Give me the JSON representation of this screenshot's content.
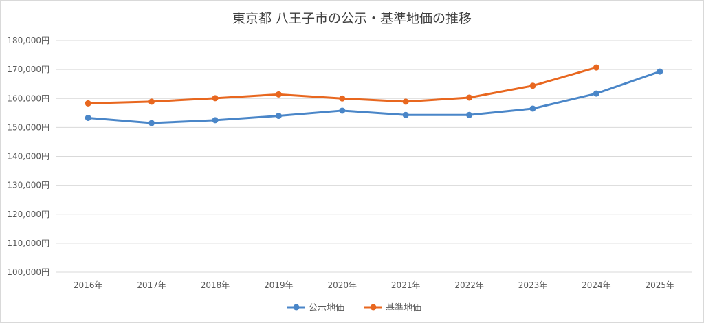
{
  "chart_data": {
    "type": "line",
    "title": "東京都 八王子市の公示・基準地価の推移",
    "xlabel": "",
    "ylabel": "",
    "categories": [
      "2016年",
      "2017年",
      "2018年",
      "2019年",
      "2020年",
      "2021年",
      "2022年",
      "2023年",
      "2024年",
      "2025年"
    ],
    "yticks": [
      "100,000円",
      "110,000円",
      "120,000円",
      "130,000円",
      "140,000円",
      "150,000円",
      "160,000円",
      "170,000円",
      "180,000円"
    ],
    "ylim": [
      100000,
      180000
    ],
    "grid": true,
    "legend_position": "bottom",
    "series": [
      {
        "name": "公示地価",
        "color": "#4a86c8",
        "values": [
          153300,
          151500,
          152500,
          154000,
          155800,
          154300,
          154300,
          156500,
          161700,
          169300
        ]
      },
      {
        "name": "基準地価",
        "color": "#e8671f",
        "values": [
          158300,
          158900,
          160100,
          161400,
          160000,
          158900,
          160300,
          164400,
          170700,
          null
        ]
      }
    ]
  }
}
